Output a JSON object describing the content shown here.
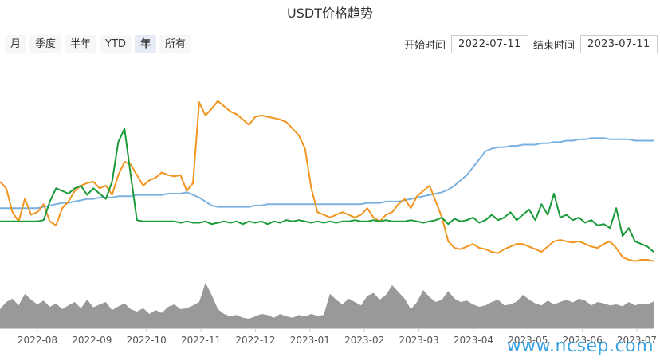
{
  "title": "USDT价格趋势",
  "range_buttons": [
    {
      "label": "月",
      "active": false
    },
    {
      "label": "季度",
      "active": false
    },
    {
      "label": "半年",
      "active": false
    },
    {
      "label": "YTD",
      "active": false
    },
    {
      "label": "年",
      "active": true
    },
    {
      "label": "所有",
      "active": false
    }
  ],
  "start": {
    "label": "开始时间",
    "value": "2022-07-11"
  },
  "end": {
    "label": "结束时间",
    "value": "2023-07-11"
  },
  "watermark": "www.ncsep.com",
  "colors": {
    "blue_series": "#7ab1e0",
    "orange_series": "#f0951f",
    "green_series": "#1a9a3a",
    "volume_area": "#999999",
    "axis": "#cccccc",
    "tick_text": "#555555"
  },
  "chart_data": {
    "type": "line",
    "title": "USDT价格趋势",
    "x_ticks": [
      "2022-08",
      "2022-09",
      "2022-10",
      "2022-11",
      "2022-12",
      "2023-01",
      "2023-02",
      "2023-03",
      "2023-04",
      "2023-05",
      "2023-06",
      "2023-07"
    ],
    "series": [
      {
        "color": "#7ab1e0",
        "values": [
          0.45,
          0.45,
          0.45,
          0.45,
          0.45,
          0.45,
          0.45,
          0.46,
          0.47,
          0.48,
          0.49,
          0.49,
          0.5,
          0.51,
          0.52,
          0.52,
          0.53,
          0.53,
          0.53,
          0.54,
          0.54,
          0.54,
          0.55,
          0.55,
          0.55,
          0.55,
          0.55,
          0.56,
          0.56,
          0.56,
          0.57,
          0.55,
          0.53,
          0.5,
          0.47,
          0.46,
          0.46,
          0.46,
          0.46,
          0.46,
          0.46,
          0.47,
          0.47,
          0.48,
          0.48,
          0.48,
          0.48,
          0.48,
          0.48,
          0.48,
          0.48,
          0.48,
          0.48,
          0.48,
          0.48,
          0.48,
          0.48,
          0.48,
          0.48,
          0.49,
          0.49,
          0.49,
          0.5,
          0.5,
          0.5,
          0.51,
          0.52,
          0.53,
          0.54,
          0.55,
          0.56,
          0.57,
          0.59,
          0.62,
          0.66,
          0.7,
          0.76,
          0.82,
          0.88,
          0.9,
          0.91,
          0.91,
          0.92,
          0.92,
          0.93,
          0.93,
          0.93,
          0.94,
          0.94,
          0.95,
          0.95,
          0.96,
          0.96,
          0.97,
          0.97,
          0.98,
          0.98,
          0.98,
          0.97,
          0.97,
          0.97,
          0.97,
          0.96,
          0.96,
          0.96,
          0.96
        ]
      },
      {
        "color": "#f0951f",
        "values": [
          0.65,
          0.6,
          0.42,
          0.35,
          0.52,
          0.4,
          0.42,
          0.48,
          0.35,
          0.32,
          0.45,
          0.5,
          0.58,
          0.62,
          0.64,
          0.65,
          0.6,
          0.62,
          0.55,
          0.7,
          0.8,
          0.78,
          0.7,
          0.62,
          0.66,
          0.68,
          0.72,
          0.7,
          0.69,
          0.7,
          0.58,
          0.64,
          1.25,
          1.15,
          1.2,
          1.26,
          1.22,
          1.18,
          1.16,
          1.12,
          1.08,
          1.14,
          1.15,
          1.14,
          1.13,
          1.12,
          1.1,
          1.05,
          1.0,
          0.9,
          0.6,
          0.42,
          0.4,
          0.38,
          0.4,
          0.42,
          0.4,
          0.38,
          0.4,
          0.45,
          0.38,
          0.35,
          0.4,
          0.42,
          0.48,
          0.52,
          0.45,
          0.54,
          0.58,
          0.62,
          0.5,
          0.38,
          0.2,
          0.15,
          0.14,
          0.16,
          0.18,
          0.15,
          0.14,
          0.12,
          0.11,
          0.14,
          0.16,
          0.18,
          0.18,
          0.16,
          0.14,
          0.12,
          0.16,
          0.2,
          0.21,
          0.2,
          0.19,
          0.2,
          0.18,
          0.16,
          0.15,
          0.18,
          0.2,
          0.15,
          0.08,
          0.06,
          0.05,
          0.06,
          0.06,
          0.05
        ]
      },
      {
        "color": "#1a9a3a",
        "values": [
          0.35,
          0.35,
          0.35,
          0.35,
          0.35,
          0.35,
          0.35,
          0.36,
          0.5,
          0.6,
          0.58,
          0.56,
          0.6,
          0.62,
          0.55,
          0.6,
          0.56,
          0.52,
          0.65,
          0.95,
          1.05,
          0.7,
          0.36,
          0.35,
          0.35,
          0.35,
          0.35,
          0.35,
          0.35,
          0.34,
          0.35,
          0.34,
          0.34,
          0.35,
          0.33,
          0.34,
          0.35,
          0.34,
          0.35,
          0.33,
          0.35,
          0.34,
          0.35,
          0.33,
          0.35,
          0.34,
          0.36,
          0.35,
          0.36,
          0.35,
          0.34,
          0.35,
          0.34,
          0.35,
          0.34,
          0.35,
          0.35,
          0.36,
          0.35,
          0.35,
          0.36,
          0.35,
          0.36,
          0.35,
          0.35,
          0.35,
          0.36,
          0.35,
          0.34,
          0.35,
          0.36,
          0.38,
          0.33,
          0.37,
          0.35,
          0.36,
          0.38,
          0.34,
          0.36,
          0.4,
          0.36,
          0.38,
          0.42,
          0.36,
          0.4,
          0.44,
          0.36,
          0.48,
          0.4,
          0.56,
          0.38,
          0.4,
          0.36,
          0.38,
          0.34,
          0.36,
          0.32,
          0.33,
          0.3,
          0.45,
          0.24,
          0.3,
          0.2,
          0.18,
          0.16,
          0.12
        ]
      }
    ],
    "volume": [
      0.4,
      0.55,
      0.62,
      0.48,
      0.72,
      0.6,
      0.5,
      0.58,
      0.45,
      0.52,
      0.4,
      0.48,
      0.55,
      0.42,
      0.6,
      0.44,
      0.5,
      0.55,
      0.38,
      0.46,
      0.52,
      0.4,
      0.35,
      0.42,
      0.3,
      0.38,
      0.32,
      0.45,
      0.5,
      0.4,
      0.42,
      0.48,
      0.55,
      0.95,
      0.7,
      0.4,
      0.3,
      0.25,
      0.28,
      0.22,
      0.2,
      0.25,
      0.3,
      0.28,
      0.22,
      0.3,
      0.25,
      0.22,
      0.28,
      0.25,
      0.3,
      0.26,
      0.28,
      0.72,
      0.6,
      0.5,
      0.62,
      0.55,
      0.48,
      0.68,
      0.74,
      0.6,
      0.7,
      0.9,
      0.76,
      0.62,
      0.4,
      0.55,
      0.8,
      0.65,
      0.55,
      0.6,
      0.78,
      0.62,
      0.55,
      0.58,
      0.5,
      0.45,
      0.48,
      0.55,
      0.6,
      0.48,
      0.5,
      0.56,
      0.7,
      0.6,
      0.52,
      0.48,
      0.58,
      0.5,
      0.55,
      0.6,
      0.54,
      0.62,
      0.58,
      0.48,
      0.55,
      0.52,
      0.48,
      0.5,
      0.46,
      0.55,
      0.48,
      0.52,
      0.5,
      0.56
    ]
  }
}
